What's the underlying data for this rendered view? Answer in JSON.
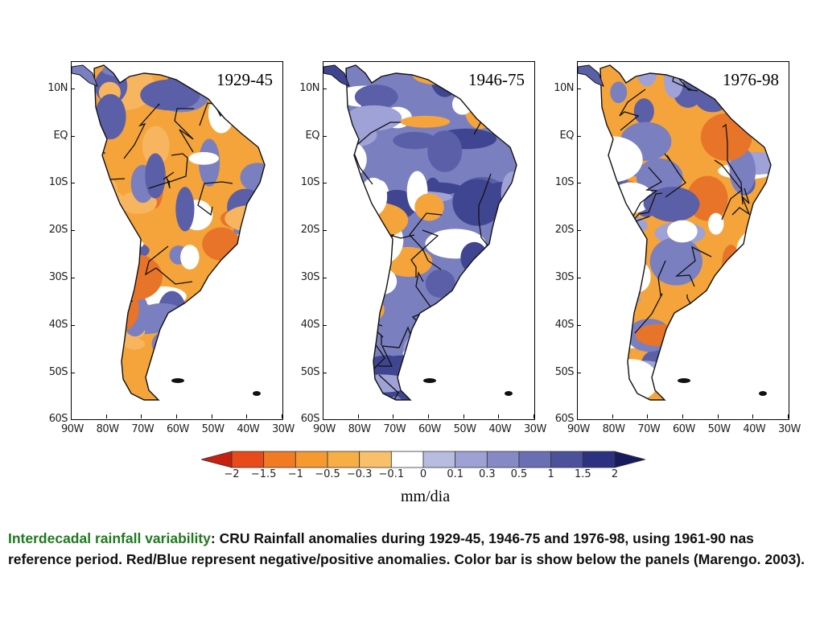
{
  "panels": [
    {
      "title": "1929-45",
      "dominant": "negative",
      "accent": "#f4a43a"
    },
    {
      "title": "1946-75",
      "dominant": "positive",
      "accent": "#7a7fc0"
    },
    {
      "title": "1976-98",
      "dominant": "mixed",
      "accent": "#f4a43a"
    }
  ],
  "y_axis_labels": [
    "10N",
    "EQ",
    "10S",
    "20S",
    "30S",
    "40S",
    "50S",
    "60S"
  ],
  "x_axis_labels": [
    "90W",
    "80W",
    "70W",
    "60W",
    "50W",
    "40W",
    "30W"
  ],
  "colorbar": {
    "labels": [
      "−2",
      "−1.5",
      "−1",
      "−0.5",
      "−0.3",
      "−0.1",
      "0",
      "0.1",
      "0.3",
      "0.5",
      "1",
      "1.5",
      "2"
    ],
    "colors": [
      "#c8200e",
      "#e84a1a",
      "#f27a22",
      "#f69a30",
      "#f7ae45",
      "#f9c06a",
      "#ffffff",
      "#b8bce0",
      "#9da1d4",
      "#8589c6",
      "#6a6fb4",
      "#4c519c",
      "#2c3280",
      "#171c5c"
    ],
    "units": "mm/dia"
  },
  "caption": {
    "highlight": "Interdecadal rainfall variability",
    "text": ":  CRU Rainfall anomalies during 1929-45, 1946-75 and 1976-98, using 1961-90 nas reference period. Red/Blue represent negative/positive anomalies. Color bar is show below the panels  (Marengo. 2003)."
  }
}
